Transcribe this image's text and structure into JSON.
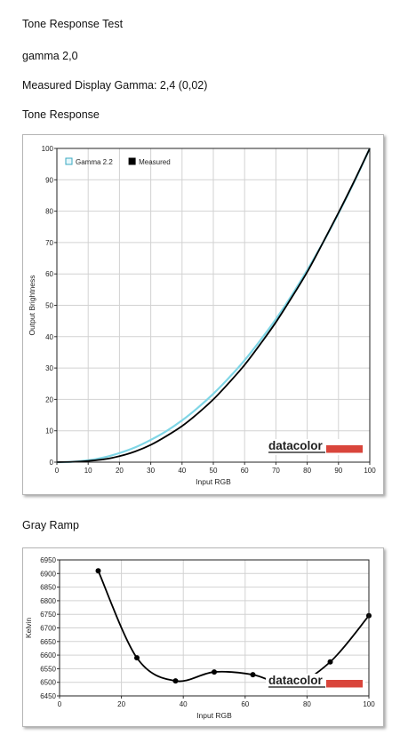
{
  "texts": {
    "title": "Tone Response Test",
    "gamma_setting": "gamma 2,0",
    "measured": "Measured Display Gamma: 2,4 (0,02)",
    "tone_heading": "Tone Response",
    "gray_heading": "Gray Ramp"
  },
  "logo": {
    "text": "datacolor",
    "bar_color": "#d9453b"
  },
  "chart_data": [
    {
      "type": "line",
      "title": "",
      "xlabel": "Input RGB",
      "ylabel": "Output Brightness",
      "xlim": [
        0,
        100
      ],
      "ylim": [
        0,
        100
      ],
      "xticks": [
        "0",
        "10",
        "20",
        "30",
        "40",
        "50",
        "60",
        "70",
        "80",
        "90",
        "100"
      ],
      "yticks": [
        "0",
        "10",
        "20",
        "30",
        "40",
        "50",
        "60",
        "70",
        "80",
        "90",
        "100"
      ],
      "grid": true,
      "legend": "top-left",
      "series": [
        {
          "name": "Gamma 2.2",
          "color": "#7fd6e6",
          "x": [
            0,
            5,
            10,
            15,
            20,
            25,
            30,
            35,
            40,
            45,
            50,
            55,
            60,
            65,
            70,
            75,
            80,
            85,
            90,
            95,
            100
          ],
          "y": [
            0,
            0.1,
            0.6,
            1.5,
            2.9,
            4.7,
            7.1,
            9.9,
            13.3,
            17.3,
            21.8,
            26.9,
            32.5,
            38.8,
            45.6,
            53.1,
            61.2,
            69.9,
            79.3,
            89.3,
            100
          ]
        },
        {
          "name": "Measured",
          "color": "#000000",
          "x": [
            0,
            5,
            10,
            15,
            20,
            25,
            30,
            35,
            40,
            45,
            50,
            55,
            60,
            65,
            70,
            75,
            80,
            85,
            90,
            95,
            100
          ],
          "y": [
            0,
            0.1,
            0.4,
            0.9,
            1.9,
            3.4,
            5.5,
            8.3,
            11.5,
            15.5,
            20.0,
            25.3,
            31.0,
            37.6,
            44.6,
            52.4,
            60.6,
            69.9,
            79.5,
            89.5,
            100
          ]
        }
      ]
    },
    {
      "type": "line",
      "title": "",
      "xlabel": "Input RGB",
      "ylabel": "Kelvin",
      "xlim": [
        0,
        100
      ],
      "ylim": [
        6450,
        6950
      ],
      "xticks": [
        "0",
        "20",
        "40",
        "60",
        "80",
        "100"
      ],
      "yticks": [
        "6450",
        "6500",
        "6550",
        "6600",
        "6650",
        "6700",
        "6750",
        "6800",
        "6850",
        "6900",
        "6950"
      ],
      "grid": true,
      "series": [
        {
          "color": "#000000",
          "x": [
            12.5,
            25,
            37.5,
            50,
            62.5,
            75,
            87.5,
            100
          ],
          "y": [
            6910,
            6590,
            6505,
            6538,
            6528,
            6490,
            6575,
            6745
          ]
        }
      ]
    }
  ]
}
